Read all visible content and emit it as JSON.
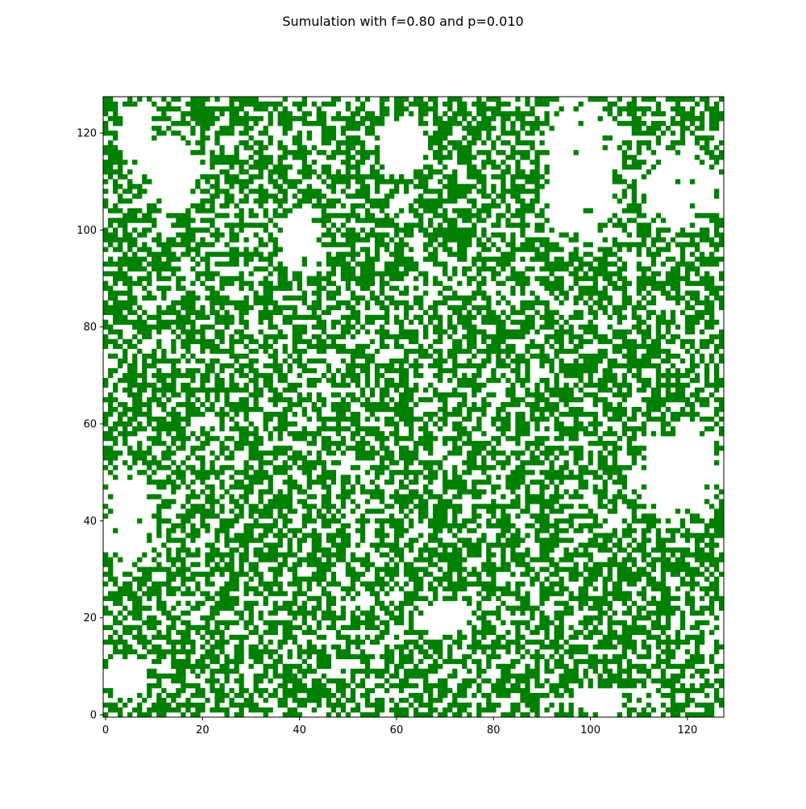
{
  "chart_data": {
    "type": "heatmap",
    "title": "Sumulation with f=0.80 and p=0.010",
    "grid_size": [
      128,
      128
    ],
    "origin": "lower",
    "xlim": [
      -0.5,
      127.5
    ],
    "ylim": [
      -0.5,
      127.5
    ],
    "xticks": [
      0,
      20,
      40,
      60,
      80,
      100,
      120
    ],
    "yticks": [
      0,
      20,
      40,
      60,
      80,
      100,
      120
    ],
    "xtick_labels": [
      "0",
      "20",
      "40",
      "60",
      "80",
      "100",
      "120"
    ],
    "ytick_labels": [
      "0",
      "20",
      "40",
      "60",
      "80",
      "100",
      "120"
    ],
    "colormap": {
      "0": "#ffffff",
      "1": "#008000"
    },
    "tree_density_estimate": 0.55,
    "empty_regions": [
      {
        "x": [
          3,
          10
        ],
        "y": [
          110,
          127
        ],
        "note": "large clearing upper-left"
      },
      {
        "x": [
          8,
          20
        ],
        "y": [
          104,
          120
        ]
      },
      {
        "x": [
          36,
          44
        ],
        "y": [
          90,
          106
        ]
      },
      {
        "x": [
          56,
          66
        ],
        "y": [
          112,
          124
        ]
      },
      {
        "x": [
          90,
          106
        ],
        "y": [
          96,
          128
        ]
      },
      {
        "x": [
          110,
          127
        ],
        "y": [
          100,
          117
        ]
      },
      {
        "x": [
          0,
          10
        ],
        "y": [
          30,
          50
        ]
      },
      {
        "x": [
          110,
          127
        ],
        "y": [
          40,
          60
        ]
      },
      {
        "x": [
          64,
          76
        ],
        "y": [
          16,
          24
        ]
      },
      {
        "x": [
          0,
          8
        ],
        "y": [
          4,
          12
        ]
      },
      {
        "x": [
          96,
          108
        ],
        "y": [
          0,
          6
        ]
      }
    ],
    "grid": false,
    "legend": "none"
  }
}
